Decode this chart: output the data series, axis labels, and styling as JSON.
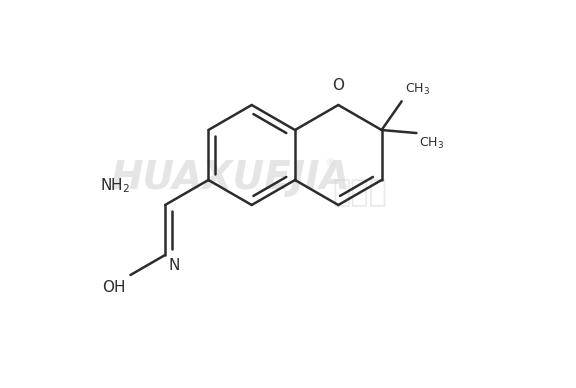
{
  "background_color": "#ffffff",
  "line_color": "#2c2c2c",
  "line_width": 1.8,
  "fig_width": 5.76,
  "fig_height": 3.88,
  "dpi": 100,
  "xlim": [
    0,
    576
  ],
  "ylim": [
    0,
    388
  ],
  "watermark1": "HUAXUEJIA",
  "watermark2": "化学加",
  "watermark_color": "#d0d0d0"
}
